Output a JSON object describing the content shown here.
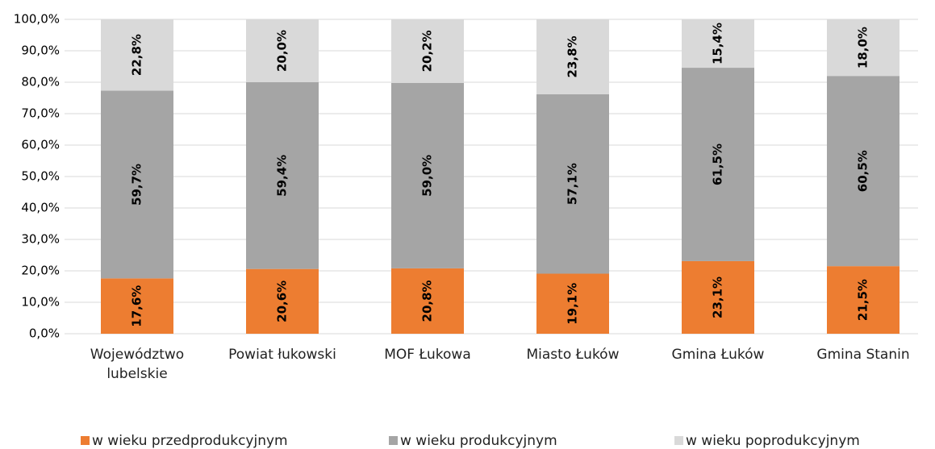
{
  "chart_data": {
    "type": "stacked_bar",
    "categories": [
      "Województwo lubelskie",
      "Powiat łukowski",
      "MOF Łukowa",
      "Miasto Łuków",
      "Gmina Łuków",
      "Gmina Stanin"
    ],
    "series": [
      {
        "name": "w wieku przedprodukcyjnym",
        "color": "#ed7d31",
        "values": [
          17.6,
          20.6,
          20.8,
          19.1,
          23.1,
          21.5
        ],
        "value_labels": [
          "17,6%",
          "20,6%",
          "20,8%",
          "19,1%",
          "23,1%",
          "21,5%"
        ]
      },
      {
        "name": "w wieku produkcyjnym",
        "color": "#a5a5a5",
        "values": [
          59.7,
          59.4,
          59.0,
          57.1,
          61.5,
          60.5
        ],
        "value_labels": [
          "59,7%",
          "59,4%",
          "59,0%",
          "57,1%",
          "61,5%",
          "60,5%"
        ]
      },
      {
        "name": "w wieku poprodukcyjnym",
        "color": "#d9d9d9",
        "values": [
          22.8,
          20.0,
          20.2,
          23.8,
          15.4,
          18.0
        ],
        "value_labels": [
          "22,8%",
          "20,0%",
          "20,2%",
          "23,8%",
          "15,4%",
          "18,0%"
        ]
      }
    ],
    "ylim": [
      0,
      100
    ],
    "yticks": [
      {
        "value": 0,
        "label": "0,0%"
      },
      {
        "value": 10,
        "label": "10,0%"
      },
      {
        "value": 20,
        "label": "20,0%"
      },
      {
        "value": 30,
        "label": "30,0%"
      },
      {
        "value": 40,
        "label": "40,0%"
      },
      {
        "value": 50,
        "label": "50,0%"
      },
      {
        "value": 60,
        "label": "60,0%"
      },
      {
        "value": 70,
        "label": "70,0%"
      },
      {
        "value": 80,
        "label": "80,0%"
      },
      {
        "value": 90,
        "label": "90,0%"
      },
      {
        "value": 100,
        "label": "100,0%"
      }
    ],
    "grid": true,
    "legend": "bottom"
  }
}
